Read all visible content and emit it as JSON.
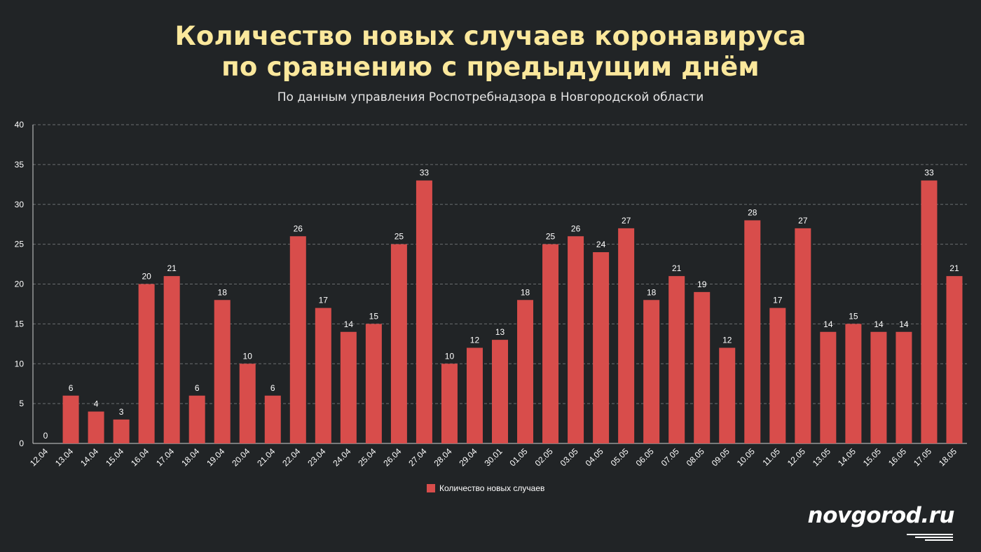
{
  "header": {
    "title_line1": "Количество новых случаев коронавируса",
    "title_line2": "по сравнению с предыдущим днём",
    "subtitle": "По данным управления Роспотребнадзора в Новгородской области"
  },
  "legend": {
    "label": "Количество новых случаев"
  },
  "brand": {
    "logo_text": "novgorod.ru"
  },
  "colors": {
    "background": "#212426",
    "bar": "#d84d4b",
    "title": "#fbe89c",
    "grid": "#6b6e70"
  },
  "chart_data": {
    "type": "bar",
    "title": "Количество новых случаев коронавируса по сравнению с предыдущим днём",
    "subtitle": "По данным управления Роспотребнадзора в Новгородской области",
    "categories": [
      "12.04",
      "13.04",
      "14.04",
      "15.04",
      "16.04",
      "17.04",
      "18.04",
      "19.04",
      "20.04",
      "21.04",
      "22.04",
      "23.04",
      "24.04",
      "25.04",
      "26.04",
      "27.04",
      "28.04",
      "29.04",
      "30.01",
      "01.05",
      "02.05",
      "03.05",
      "04.05",
      "05.05",
      "06.05",
      "07.05",
      "08.05",
      "09.05",
      "10.05",
      "11.05",
      "12.05",
      "13.05",
      "14.05",
      "15.05",
      "16.05",
      "17.05",
      "18.05"
    ],
    "series": [
      {
        "name": "Количество новых случаев",
        "values": [
          0,
          6,
          4,
          3,
          20,
          21,
          6,
          18,
          10,
          6,
          26,
          17,
          14,
          15,
          25,
          33,
          10,
          12,
          13,
          18,
          25,
          26,
          24,
          27,
          18,
          21,
          19,
          12,
          28,
          17,
          27,
          14,
          15,
          14,
          14,
          33,
          21
        ]
      }
    ],
    "ylim": [
      0,
      40
    ],
    "yticks": [
      0,
      5,
      10,
      15,
      20,
      25,
      30,
      35,
      40
    ],
    "grid": true,
    "legend_position": "bottom-center",
    "data_labels": true
  }
}
